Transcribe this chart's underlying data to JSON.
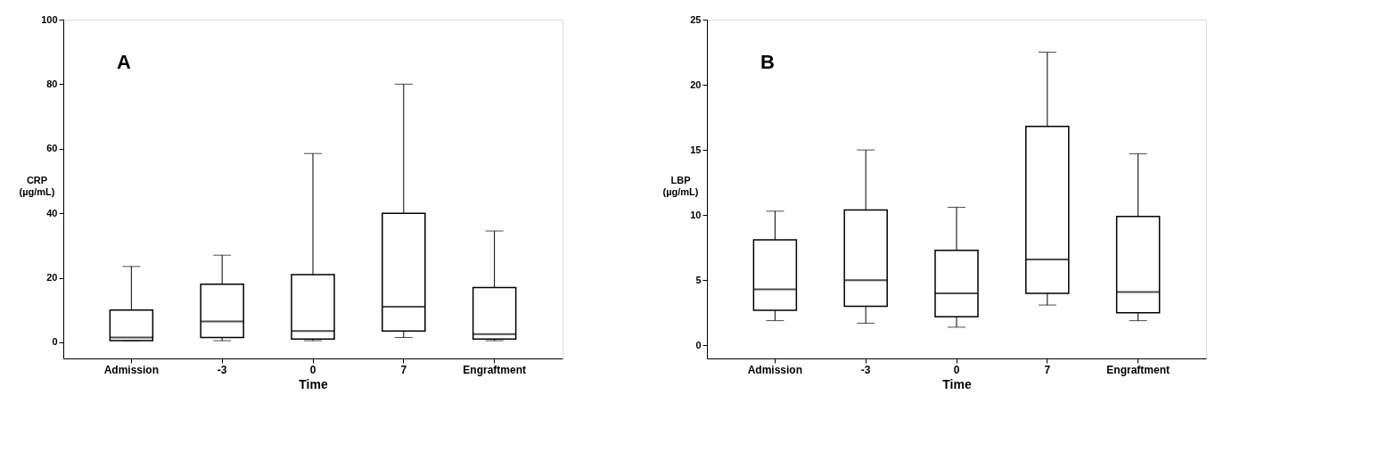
{
  "chart_data": [
    {
      "type": "box",
      "title": "A",
      "xlabel": "Time",
      "ylabel": "CRP (µg/mL)",
      "categories": [
        "Admission",
        "-3",
        "0",
        "7",
        "Engraftment"
      ],
      "ylim": [
        -5,
        100
      ],
      "yticks": [
        0,
        20,
        40,
        60,
        80,
        100
      ],
      "grid": false,
      "color": "#ffffff",
      "boxes": [
        {
          "low": 0.5,
          "q1": 0.5,
          "median": 1.5,
          "q3": 10,
          "high": 23.5
        },
        {
          "low": 0.5,
          "q1": 1.5,
          "median": 6.5,
          "q3": 18,
          "high": 27
        },
        {
          "low": 0.5,
          "q1": 1,
          "median": 3.5,
          "q3": 21,
          "high": 58.5
        },
        {
          "low": 1.5,
          "q1": 3.5,
          "median": 11,
          "q3": 40,
          "high": 80
        },
        {
          "low": 0.5,
          "q1": 1,
          "median": 2.5,
          "q3": 17,
          "high": 34.5
        }
      ]
    },
    {
      "type": "box",
      "title": "B",
      "xlabel": "Time",
      "ylabel": "LBP (µg/mL)",
      "categories": [
        "Admission",
        "-3",
        "0",
        "7",
        "Engraftment"
      ],
      "ylim": [
        -1,
        25
      ],
      "yticks": [
        0,
        5,
        10,
        15,
        20,
        25
      ],
      "grid": false,
      "color": "#ffffff",
      "boxes": [
        {
          "low": 1.9,
          "q1": 2.7,
          "median": 4.3,
          "q3": 8.1,
          "high": 10.3
        },
        {
          "low": 1.7,
          "q1": 3.0,
          "median": 5.0,
          "q3": 10.4,
          "high": 15.0
        },
        {
          "low": 1.4,
          "q1": 2.2,
          "median": 4.0,
          "q3": 7.3,
          "high": 10.6
        },
        {
          "low": 3.1,
          "q1": 4.0,
          "median": 6.6,
          "q3": 16.8,
          "high": 22.5
        },
        {
          "low": 1.9,
          "q1": 2.5,
          "median": 4.1,
          "q3": 9.9,
          "high": 14.7
        }
      ]
    }
  ]
}
